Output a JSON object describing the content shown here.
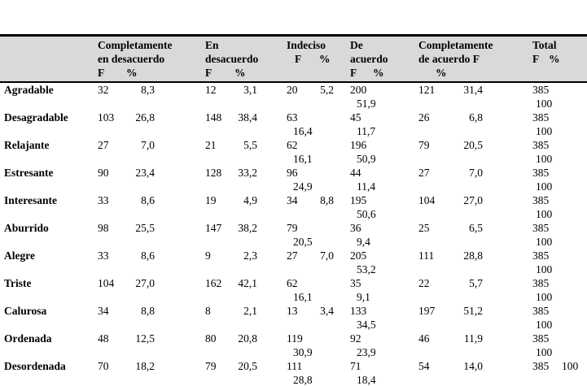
{
  "page": {
    "background": "#ffffff"
  },
  "colors": {
    "header_bg": "#d9d9d9",
    "rule": "#000000",
    "text": "#000000"
  },
  "chart_data": {
    "type": "table",
    "title": "",
    "row_header_label": "",
    "subcolumn_labels": [
      "F",
      "%"
    ],
    "columns": [
      {
        "label_lines": [
          "Completamente",
          "en desacuerdo"
        ],
        "f": "F",
        "p": "%"
      },
      {
        "label_lines": [
          "En",
          "desacuerdo"
        ],
        "f": "F",
        "p": "%"
      },
      {
        "label_lines": [
          "Indeciso"
        ],
        "f": "F",
        "p": "%"
      },
      {
        "label_lines": [
          "De",
          "acuerdo"
        ],
        "f": "F",
        "p": "%"
      },
      {
        "label_lines": [
          "Completamente",
          "de acuerdo F"
        ],
        "f": "",
        "p": "%"
      },
      {
        "label_lines": [
          "Total"
        ],
        "f": "F",
        "p": "%"
      }
    ],
    "rows": [
      {
        "label": "Agradable",
        "cells": [
          {
            "f": "32",
            "p": "8,3",
            "wrap": false
          },
          {
            "f": "12",
            "p": "3,1",
            "wrap": false
          },
          {
            "f": "20",
            "p": "5,2",
            "wrap": false
          },
          {
            "f": "200",
            "p": "51,9",
            "wrap": true
          },
          {
            "f": "121",
            "p": "31,4",
            "wrap": false
          },
          {
            "f": "385",
            "p": "100",
            "wrap": true
          }
        ]
      },
      {
        "label": "Desagradable",
        "cells": [
          {
            "f": "103",
            "p": "26,8",
            "wrap": false
          },
          {
            "f": "148",
            "p": "38,4",
            "wrap": false
          },
          {
            "f": "63",
            "p": "16,4",
            "wrap": true
          },
          {
            "f": "45",
            "p": "11,7",
            "wrap": true
          },
          {
            "f": "26",
            "p": "6,8",
            "wrap": false
          },
          {
            "f": "385",
            "p": "100",
            "wrap": true
          }
        ]
      },
      {
        "label": "Relajante",
        "cells": [
          {
            "f": "27",
            "p": "7,0",
            "wrap": false
          },
          {
            "f": "21",
            "p": "5,5",
            "wrap": false
          },
          {
            "f": "62",
            "p": "16,1",
            "wrap": true
          },
          {
            "f": "196",
            "p": "50,9",
            "wrap": true
          },
          {
            "f": "79",
            "p": "20,5",
            "wrap": false
          },
          {
            "f": "385",
            "p": "100",
            "wrap": true
          }
        ]
      },
      {
        "label": "Estresante",
        "cells": [
          {
            "f": "90",
            "p": "23,4",
            "wrap": false
          },
          {
            "f": "128",
            "p": "33,2",
            "wrap": false
          },
          {
            "f": "96",
            "p": "24,9",
            "wrap": true
          },
          {
            "f": "44",
            "p": "11,4",
            "wrap": true
          },
          {
            "f": "27",
            "p": "7,0",
            "wrap": false
          },
          {
            "f": "385",
            "p": "100",
            "wrap": true
          }
        ]
      },
      {
        "label": "Interesante",
        "cells": [
          {
            "f": "33",
            "p": "8,6",
            "wrap": false
          },
          {
            "f": "19",
            "p": "4,9",
            "wrap": false
          },
          {
            "f": "34",
            "p": "8,8",
            "wrap": false
          },
          {
            "f": "195",
            "p": "50,6",
            "wrap": true
          },
          {
            "f": "104",
            "p": "27,0",
            "wrap": false
          },
          {
            "f": "385",
            "p": "100",
            "wrap": true
          }
        ]
      },
      {
        "label": "Aburrido",
        "cells": [
          {
            "f": "98",
            "p": "25,5",
            "wrap": false
          },
          {
            "f": "147",
            "p": "38,2",
            "wrap": false
          },
          {
            "f": "79",
            "p": "20,5",
            "wrap": true
          },
          {
            "f": "36",
            "p": "9,4",
            "wrap": true
          },
          {
            "f": "25",
            "p": "6,5",
            "wrap": false
          },
          {
            "f": "385",
            "p": "100",
            "wrap": true
          }
        ]
      },
      {
        "label": "Alegre",
        "cells": [
          {
            "f": "33",
            "p": "8,6",
            "wrap": false
          },
          {
            "f": "9",
            "p": "2,3",
            "wrap": false
          },
          {
            "f": "27",
            "p": "7,0",
            "wrap": false
          },
          {
            "f": "205",
            "p": "53,2",
            "wrap": true
          },
          {
            "f": "111",
            "p": "28,8",
            "wrap": false
          },
          {
            "f": "385",
            "p": "100",
            "wrap": true
          }
        ]
      },
      {
        "label": "Triste",
        "cells": [
          {
            "f": "104",
            "p": "27,0",
            "wrap": false
          },
          {
            "f": "162",
            "p": "42,1",
            "wrap": false
          },
          {
            "f": "62",
            "p": "16,1",
            "wrap": true
          },
          {
            "f": "35",
            "p": "9,1",
            "wrap": true
          },
          {
            "f": "22",
            "p": "5,7",
            "wrap": false
          },
          {
            "f": "385",
            "p": "100",
            "wrap": true
          }
        ]
      },
      {
        "label": "Calurosa",
        "cells": [
          {
            "f": "34",
            "p": "8,8",
            "wrap": false
          },
          {
            "f": "8",
            "p": "2,1",
            "wrap": false
          },
          {
            "f": "13",
            "p": "3,4",
            "wrap": false
          },
          {
            "f": "133",
            "p": "34,5",
            "wrap": true
          },
          {
            "f": "197",
            "p": "51,2",
            "wrap": false
          },
          {
            "f": "385",
            "p": "100",
            "wrap": true
          }
        ]
      },
      {
        "label": "Ordenada",
        "cells": [
          {
            "f": "48",
            "p": "12,5",
            "wrap": false
          },
          {
            "f": "80",
            "p": "20,8",
            "wrap": false
          },
          {
            "f": "119",
            "p": "30,9",
            "wrap": true
          },
          {
            "f": "92",
            "p": "23,9",
            "wrap": true
          },
          {
            "f": "46",
            "p": "11,9",
            "wrap": false
          },
          {
            "f": "385",
            "p": "100",
            "wrap": true
          }
        ]
      },
      {
        "label": "Desordenada",
        "cells": [
          {
            "f": "70",
            "p": "18,2",
            "wrap": false
          },
          {
            "f": "79",
            "p": "20,5",
            "wrap": false
          },
          {
            "f": "111",
            "p": "28,8",
            "wrap": true
          },
          {
            "f": "71",
            "p": "18,4",
            "wrap": true
          },
          {
            "f": "54",
            "p": "14,0",
            "wrap": false
          },
          {
            "f": "385",
            "p": "100",
            "wrap": false
          }
        ]
      }
    ]
  }
}
